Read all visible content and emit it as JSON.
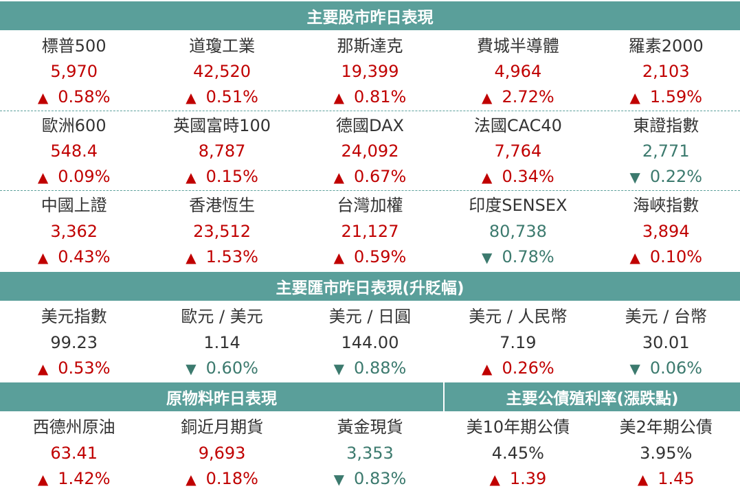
{
  "headers": {
    "stocks": "主要股市昨日表現",
    "fx": "主要匯市昨日表現(升貶幅)",
    "commodities": "原物料昨日表現",
    "bonds": "主要公債殖利率(漲跌點)"
  },
  "colors": {
    "header_bg": "#5a9f9a",
    "up": "#c00000",
    "down": "#3c7a6e"
  },
  "icons": {
    "up": "up-triangle-icon",
    "down": "down-triangle-icon"
  },
  "stocks": [
    [
      {
        "name": "標普500",
        "value": "5,970",
        "change": "0.58%",
        "dir": "up"
      },
      {
        "name": "道瓊工業",
        "value": "42,520",
        "change": "0.51%",
        "dir": "up"
      },
      {
        "name": "那斯達克",
        "value": "19,399",
        "change": "0.81%",
        "dir": "up"
      },
      {
        "name": "費城半導體",
        "value": "4,964",
        "change": "2.72%",
        "dir": "up"
      },
      {
        "name": "羅素2000",
        "value": "2,103",
        "change": "1.59%",
        "dir": "up"
      }
    ],
    [
      {
        "name": "歐洲600",
        "value": "548.4",
        "change": "0.09%",
        "dir": "up"
      },
      {
        "name": "英國富時100",
        "value": "8,787",
        "change": "0.15%",
        "dir": "up"
      },
      {
        "name": "德國DAX",
        "value": "24,092",
        "change": "0.67%",
        "dir": "up"
      },
      {
        "name": "法國CAC40",
        "value": "7,764",
        "change": "0.34%",
        "dir": "up"
      },
      {
        "name": "東證指數",
        "value": "2,771",
        "change": "0.22%",
        "dir": "down"
      }
    ],
    [
      {
        "name": "中國上證",
        "value": "3,362",
        "change": "0.43%",
        "dir": "up"
      },
      {
        "name": "香港恆生",
        "value": "23,512",
        "change": "1.53%",
        "dir": "up"
      },
      {
        "name": "台灣加權",
        "value": "21,127",
        "change": "0.59%",
        "dir": "up"
      },
      {
        "name": "印度SENSEX",
        "value": "80,738",
        "change": "0.78%",
        "dir": "down"
      },
      {
        "name": "海峽指數",
        "value": "3,894",
        "change": "0.10%",
        "dir": "up"
      }
    ]
  ],
  "fx": [
    {
      "name": "美元指數",
      "value": "99.23",
      "change": "0.53%",
      "dir": "up"
    },
    {
      "name": "歐元 / 美元",
      "value": "1.14",
      "change": "0.60%",
      "dir": "down"
    },
    {
      "name": "美元 / 日圓",
      "value": "144.00",
      "change": "0.88%",
      "dir": "down"
    },
    {
      "name": "美元 / 人民幣",
      "value": "7.19",
      "change": "0.26%",
      "dir": "up"
    },
    {
      "name": "美元 / 台幣",
      "value": "30.01",
      "change": "0.06%",
      "dir": "down"
    }
  ],
  "commodities": [
    {
      "name": "西德州原油",
      "value": "63.41",
      "change": "1.42%",
      "dir": "up"
    },
    {
      "name": "銅近月期貨",
      "value": "9,693",
      "change": "0.18%",
      "dir": "up"
    },
    {
      "name": "黃金現貨",
      "value": "3,353",
      "change": "0.83%",
      "dir": "down"
    }
  ],
  "bonds": [
    {
      "name": "美10年期公債",
      "value": "4.45%",
      "change": "1.39",
      "dir": "up"
    },
    {
      "name": "美2年期公債",
      "value": "3.95%",
      "change": "1.45",
      "dir": "up"
    }
  ]
}
